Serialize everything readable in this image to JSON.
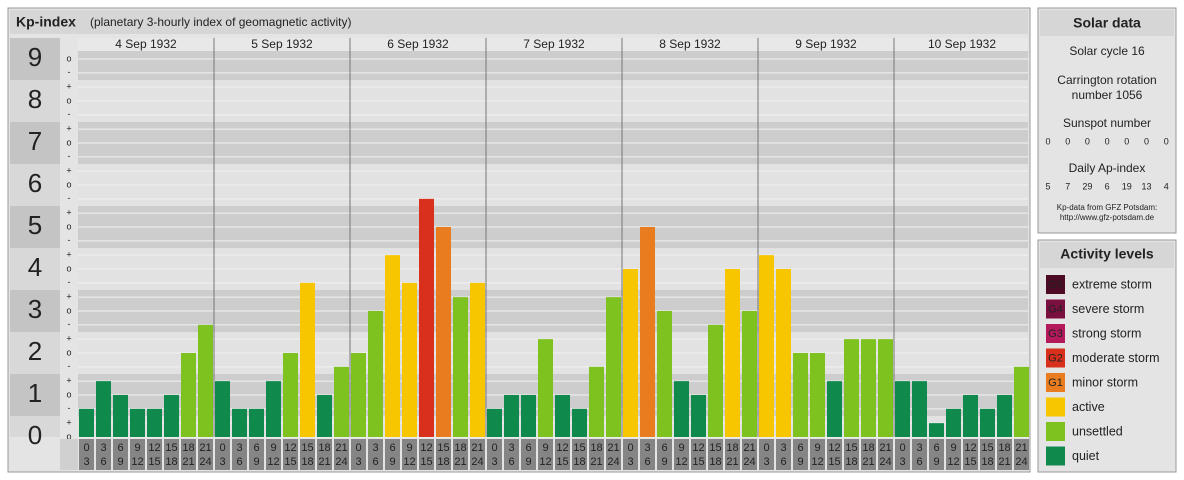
{
  "chart_data": {
    "type": "bar",
    "title": "Kp-index",
    "subtitle": "(planetary 3-hourly index of geomagnetic activity)",
    "hours": [
      0,
      3,
      6,
      9,
      12,
      15,
      18,
      21,
      24
    ],
    "days": [
      {
        "date": "4 Sep 1932",
        "values": [
          0.67,
          1.33,
          1,
          0.67,
          0.67,
          1,
          2,
          2.67
        ],
        "colors": [
          "#0f8a4c",
          "#0f8a4c",
          "#0f8a4c",
          "#0f8a4c",
          "#0f8a4c",
          "#0f8a4c",
          "#7dc21e",
          "#7dc21e"
        ]
      },
      {
        "date": "5 Sep 1932",
        "values": [
          1.33,
          0.67,
          0.67,
          1.33,
          2,
          3.67,
          1,
          1.67
        ],
        "colors": [
          "#0f8a4c",
          "#0f8a4c",
          "#0f8a4c",
          "#0f8a4c",
          "#7dc21e",
          "#f7c600",
          "#0f8a4c",
          "#7dc21e"
        ]
      },
      {
        "date": "6 Sep 1932",
        "values": [
          2,
          3,
          4.33,
          3.67,
          5.67,
          5,
          3.33,
          3.67
        ],
        "colors": [
          "#7dc21e",
          "#7dc21e",
          "#f7c600",
          "#f7c600",
          "#d9301e",
          "#e87c1e",
          "#7dc21e",
          "#f7c600"
        ]
      },
      {
        "date": "7 Sep 1932",
        "values": [
          0.67,
          1,
          1,
          2.33,
          1,
          0.67,
          1.67,
          3.33
        ],
        "colors": [
          "#0f8a4c",
          "#0f8a4c",
          "#0f8a4c",
          "#7dc21e",
          "#0f8a4c",
          "#0f8a4c",
          "#7dc21e",
          "#7dc21e"
        ]
      },
      {
        "date": "8 Sep 1932",
        "values": [
          4,
          5,
          3,
          1.33,
          1,
          2.67,
          4,
          3
        ],
        "colors": [
          "#f7c600",
          "#e87c1e",
          "#7dc21e",
          "#0f8a4c",
          "#0f8a4c",
          "#7dc21e",
          "#f7c600",
          "#7dc21e"
        ]
      },
      {
        "date": "9 Sep 1932",
        "values": [
          4.33,
          4,
          2,
          2,
          1.33,
          2.33,
          2.33,
          2.33
        ],
        "colors": [
          "#f7c600",
          "#f7c600",
          "#7dc21e",
          "#7dc21e",
          "#0f8a4c",
          "#7dc21e",
          "#7dc21e",
          "#7dc21e"
        ]
      },
      {
        "date": "10 Sep 1932",
        "values": [
          1.33,
          1.33,
          0.33,
          0.67,
          1,
          0.67,
          1,
          1.67
        ],
        "colors": [
          "#0f8a4c",
          "#0f8a4c",
          "#0f8a4c",
          "#0f8a4c",
          "#0f8a4c",
          "#0f8a4c",
          "#0f8a4c",
          "#7dc21e"
        ]
      }
    ],
    "ylim": [
      0,
      9.5
    ],
    "yticks": [
      0,
      1,
      2,
      3,
      4,
      5,
      6,
      7,
      8,
      9
    ],
    "ysubticks": [
      {
        "value": 0,
        "label": "o"
      },
      {
        "value": 0.33,
        "label": "+"
      },
      {
        "value": 0.67,
        "label": "-"
      },
      {
        "value": 1,
        "label": "o"
      },
      {
        "value": 1.33,
        "label": "+"
      },
      {
        "value": 1.67,
        "label": "-"
      },
      {
        "value": 2,
        "label": "o"
      },
      {
        "value": 2.33,
        "label": "+"
      },
      {
        "value": 2.67,
        "label": "-"
      },
      {
        "value": 3,
        "label": "o"
      },
      {
        "value": 3.33,
        "label": "+"
      },
      {
        "value": 3.67,
        "label": "-"
      },
      {
        "value": 4,
        "label": "o"
      },
      {
        "value": 4.33,
        "label": "+"
      },
      {
        "value": 4.67,
        "label": "-"
      },
      {
        "value": 5,
        "label": "o"
      },
      {
        "value": 5.33,
        "label": "+"
      },
      {
        "value": 5.67,
        "label": "-"
      },
      {
        "value": 6,
        "label": "o"
      },
      {
        "value": 6.33,
        "label": "+"
      },
      {
        "value": 6.67,
        "label": "-"
      },
      {
        "value": 7,
        "label": "o"
      },
      {
        "value": 7.33,
        "label": "+"
      },
      {
        "value": 7.67,
        "label": "-"
      },
      {
        "value": 8,
        "label": "o"
      },
      {
        "value": 8.33,
        "label": "+"
      },
      {
        "value": 8.67,
        "label": "-"
      },
      {
        "value": 9,
        "label": "o"
      }
    ]
  },
  "solar_data": {
    "title": "Solar data",
    "cycle": "Solar cycle 16",
    "carrington": [
      "Carrington rotation",
      "number 1056"
    ],
    "sunspot_label": "Sunspot number",
    "sunspot": [
      0,
      0,
      0,
      0,
      0,
      0,
      0
    ],
    "ap_label": "Daily Ap-index",
    "ap": [
      5,
      7,
      29,
      6,
      19,
      13,
      4
    ],
    "source": [
      "Kp-data from GFZ Potsdam:",
      "http://www.gfz-potsdam.de"
    ]
  },
  "activity_levels": {
    "title": "Activity levels",
    "items": [
      {
        "code": "G5",
        "label": "extreme storm",
        "color": "#4d0a25"
      },
      {
        "code": "G4",
        "label": "severe storm",
        "color": "#7a1040"
      },
      {
        "code": "G3",
        "label": "strong storm",
        "color": "#b3195b"
      },
      {
        "code": "G2",
        "label": "moderate storm",
        "color": "#d9301e"
      },
      {
        "code": "G1",
        "label": "minor storm",
        "color": "#e87c1e"
      },
      {
        "label": "active",
        "color": "#f7c600"
      },
      {
        "label": "unsettled",
        "color": "#7dc21e"
      },
      {
        "label": "quiet",
        "color": "#0f8a4c"
      }
    ]
  }
}
